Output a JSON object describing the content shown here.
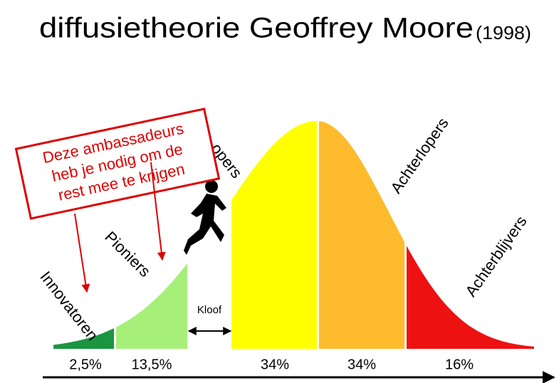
{
  "title": "diffusietheorie Geoffrey Moore",
  "year": "(1998)",
  "callout": {
    "lines": [
      "Deze ambassadeurs",
      "heb je nodig om de",
      "rest mee te krijgen"
    ]
  },
  "groups": [
    {
      "label": "Innovatoren",
      "share": "2,5%"
    },
    {
      "label": "Pioniers",
      "share": "13,5%"
    },
    {
      "label": "opers",
      "share": "34%"
    },
    {
      "label": "Achterlopers",
      "share": "34%"
    },
    {
      "label": "Achterblijvers",
      "share": "16%"
    }
  ],
  "gap": "Kloof"
}
